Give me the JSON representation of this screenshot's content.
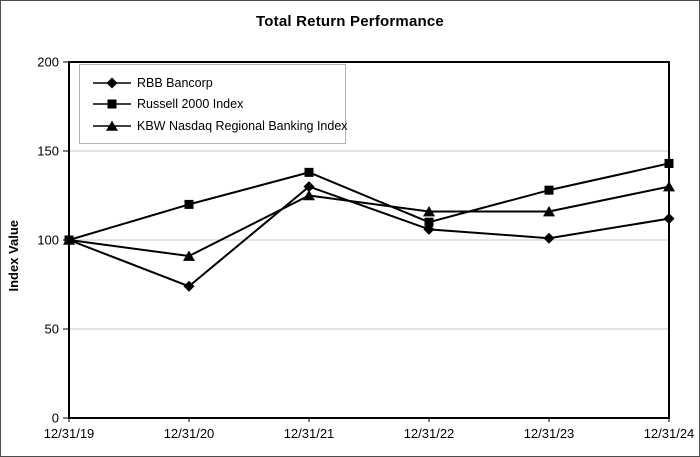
{
  "title": "Total Return Performance",
  "chart_data": {
    "type": "line",
    "title": "Total Return Performance",
    "xlabel": "",
    "ylabel": "Index Value",
    "categories": [
      "12/31/19",
      "12/31/20",
      "12/31/21",
      "12/31/22",
      "12/31/23",
      "12/31/24"
    ],
    "series": [
      {
        "name": "RBB Bancorp",
        "marker": "diamond",
        "values": [
          100,
          74,
          130,
          106,
          101,
          112
        ]
      },
      {
        "name": "Russell 2000 Index",
        "marker": "square",
        "values": [
          100,
          120,
          138,
          110,
          128,
          143
        ]
      },
      {
        "name": "KBW Nasdaq Regional Banking Index",
        "marker": "triangle",
        "values": [
          100,
          91,
          125,
          116,
          116,
          130
        ]
      }
    ],
    "ylim": [
      0,
      200
    ],
    "yticks": [
      0,
      50,
      100,
      150,
      200
    ],
    "grid": "horizontal-at-50-100-150",
    "legend_position": "top-left-inside",
    "colors": {
      "line": "#000000",
      "marker": "#000000",
      "grid": "#c9c9c9",
      "plot_border": "#000000",
      "legend_border": "#b3b3b3",
      "text": "#000000",
      "background": "#ffffff"
    }
  }
}
